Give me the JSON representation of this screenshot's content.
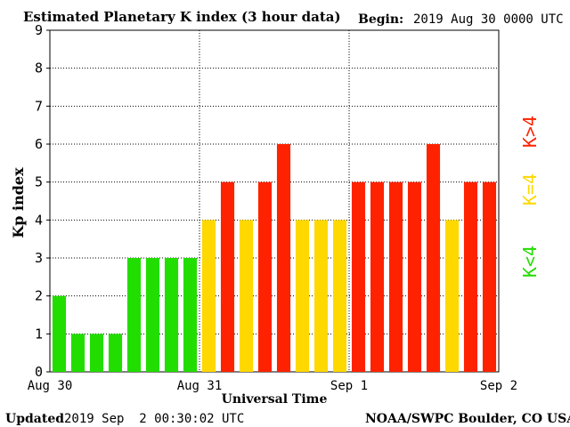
{
  "header": {
    "title": "Estimated Planetary K index (3 hour data)",
    "begin_label": "Begin:",
    "begin_value": "2019 Aug 30 0000 UTC"
  },
  "footer": {
    "updated_label": "Updated",
    "updated_value": "2019 Sep  2 00:30:02 UTC",
    "source": "NOAA/SWPC Boulder, CO USA"
  },
  "legend": {
    "low": "K<4",
    "equal": "K=4",
    "high": "K>4"
  },
  "colors": {
    "low": "#22dd00",
    "equal": "#ffd800",
    "high": "#ff2200",
    "axis": "#000000",
    "background": "#ffffff"
  },
  "chart_data": {
    "type": "bar",
    "title": "Estimated Planetary K index (3 hour data)",
    "xlabel": "Universal Time",
    "ylabel": "Kp index",
    "ylim": [
      0,
      9
    ],
    "y_ticks": [
      "0",
      "1",
      "2",
      "3",
      "4",
      "5",
      "6",
      "7",
      "8",
      "9"
    ],
    "x_ticks": [
      "Aug 30",
      "Aug 31",
      "Sep 1",
      "Sep 2"
    ],
    "grid": true,
    "legend_placement": "right",
    "categories": [
      "Aug 30 00",
      "Aug 30 03",
      "Aug 30 06",
      "Aug 30 09",
      "Aug 30 12",
      "Aug 30 15",
      "Aug 30 18",
      "Aug 30 21",
      "Aug 31 00",
      "Aug 31 03",
      "Aug 31 06",
      "Aug 31 09",
      "Aug 31 12",
      "Aug 31 15",
      "Aug 31 18",
      "Aug 31 21",
      "Sep 1 00",
      "Sep 1 03",
      "Sep 1 06",
      "Sep 1 09",
      "Sep 1 12",
      "Sep 1 15",
      "Sep 1 18",
      "Sep 1 21"
    ],
    "values": [
      2,
      1,
      1,
      1,
      3,
      3,
      3,
      3,
      4,
      5,
      4,
      5,
      6,
      4,
      4,
      4,
      5,
      5,
      5,
      5,
      6,
      4,
      5,
      5
    ]
  }
}
